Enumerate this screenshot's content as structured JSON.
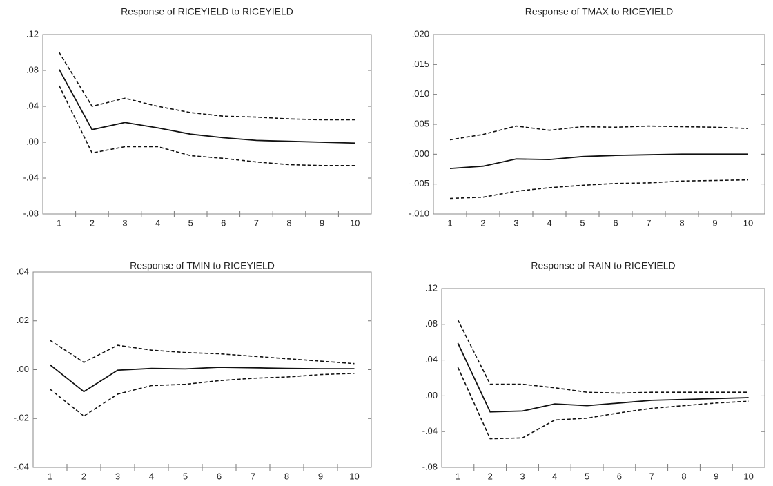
{
  "chart_data": [
    {
      "type": "line",
      "title": "Response of RICEYIELD to RICEYIELD",
      "categories": [
        "1",
        "2",
        "3",
        "4",
        "5",
        "6",
        "7",
        "8",
        "9",
        "10"
      ],
      "ylim": [
        -0.08,
        0.12
      ],
      "yticks": [
        {
          "value": -0.08,
          "label": "-.08"
        },
        {
          "value": -0.04,
          "label": "-.04"
        },
        {
          "value": 0,
          "label": ".00"
        },
        {
          "value": 0.04,
          "label": ".04"
        },
        {
          "value": 0.08,
          "label": ".08"
        },
        {
          "value": 0.12,
          "label": ".12"
        }
      ],
      "series": [
        {
          "color": "#111111",
          "style": "solid",
          "values": [
            0.081,
            0.014,
            0.022,
            0.016,
            0.009,
            0.005,
            0.002,
            0.001,
            0.0,
            -0.001
          ]
        },
        {
          "color": "#111111",
          "style": "dashed",
          "values": [
            0.1,
            0.04,
            0.049,
            0.04,
            0.033,
            0.029,
            0.028,
            0.026,
            0.025,
            0.025
          ]
        },
        {
          "color": "#111111",
          "style": "dashed",
          "values": [
            0.063,
            -0.012,
            -0.005,
            -0.005,
            -0.015,
            -0.018,
            -0.022,
            -0.025,
            -0.026,
            -0.026
          ]
        }
      ]
    },
    {
      "type": "line",
      "title": "Response of TMAX to RICEYIELD",
      "categories": [
        "1",
        "2",
        "3",
        "4",
        "5",
        "6",
        "7",
        "8",
        "9",
        "10"
      ],
      "ylim": [
        -0.01,
        0.02
      ],
      "yticks": [
        {
          "value": -0.01,
          "label": "-.010"
        },
        {
          "value": -0.005,
          "label": "-.005"
        },
        {
          "value": 0,
          "label": ".000"
        },
        {
          "value": 0.005,
          "label": ".005"
        },
        {
          "value": 0.01,
          "label": ".010"
        },
        {
          "value": 0.015,
          "label": ".015"
        },
        {
          "value": 0.02,
          "label": ".020"
        }
      ],
      "series": [
        {
          "color": "#111111",
          "style": "solid",
          "values": [
            -0.0024,
            -0.002,
            -0.0008,
            -0.0009,
            -0.0004,
            -0.0002,
            -0.0001,
            0.0,
            0.0,
            0.0
          ]
        },
        {
          "color": "#111111",
          "style": "dashed",
          "values": [
            0.0024,
            0.0033,
            0.0047,
            0.004,
            0.0046,
            0.0045,
            0.0047,
            0.0046,
            0.0045,
            0.0043
          ]
        },
        {
          "color": "#111111",
          "style": "dashed",
          "values": [
            -0.0074,
            -0.0072,
            -0.0062,
            -0.0056,
            -0.0052,
            -0.0049,
            -0.0048,
            -0.0045,
            -0.0044,
            -0.0043
          ]
        }
      ]
    },
    {
      "type": "line",
      "title": "Response of TMIN to RICEYIELD",
      "categories": [
        "1",
        "2",
        "3",
        "4",
        "5",
        "6",
        "7",
        "8",
        "9",
        "10"
      ],
      "ylim": [
        -0.04,
        0.04
      ],
      "yticks": [
        {
          "value": -0.04,
          "label": "-.04"
        },
        {
          "value": -0.02,
          "label": "-.02"
        },
        {
          "value": 0,
          "label": ".00"
        },
        {
          "value": 0.02,
          "label": ".02"
        },
        {
          "value": 0.04,
          "label": ".04"
        }
      ],
      "series": [
        {
          "color": "#111111",
          "style": "solid",
          "values": [
            0.002,
            -0.009,
            -0.0002,
            0.0005,
            0.0003,
            0.001,
            0.0008,
            0.0005,
            0.0004,
            0.0004
          ]
        },
        {
          "color": "#111111",
          "style": "dashed",
          "values": [
            0.012,
            0.003,
            0.01,
            0.008,
            0.007,
            0.0065,
            0.0055,
            0.0045,
            0.0035,
            0.0025
          ]
        },
        {
          "color": "#111111",
          "style": "dashed",
          "values": [
            -0.008,
            -0.019,
            -0.01,
            -0.0065,
            -0.006,
            -0.0045,
            -0.0035,
            -0.003,
            -0.002,
            -0.0015
          ]
        }
      ]
    },
    {
      "type": "line",
      "title": "Response of RAIN to RICEYIELD",
      "categories": [
        "1",
        "2",
        "3",
        "4",
        "5",
        "6",
        "7",
        "8",
        "9",
        "10"
      ],
      "ylim": [
        -0.08,
        0.12
      ],
      "yticks": [
        {
          "value": -0.08,
          "label": "-.08"
        },
        {
          "value": -0.04,
          "label": "-.04"
        },
        {
          "value": 0,
          "label": ".00"
        },
        {
          "value": 0.04,
          "label": ".04"
        },
        {
          "value": 0.08,
          "label": ".08"
        },
        {
          "value": 0.12,
          "label": ".12"
        }
      ],
      "series": [
        {
          "color": "#111111",
          "style": "solid",
          "values": [
            0.059,
            -0.018,
            -0.017,
            -0.009,
            -0.011,
            -0.008,
            -0.005,
            -0.004,
            -0.003,
            -0.002
          ]
        },
        {
          "color": "#111111",
          "style": "dashed",
          "values": [
            0.085,
            0.013,
            0.013,
            0.009,
            0.004,
            0.003,
            0.004,
            0.004,
            0.004,
            0.004
          ]
        },
        {
          "color": "#111111",
          "style": "dashed",
          "values": [
            0.032,
            -0.048,
            -0.047,
            -0.027,
            -0.025,
            -0.019,
            -0.014,
            -0.011,
            -0.008,
            -0.006
          ]
        }
      ]
    }
  ]
}
